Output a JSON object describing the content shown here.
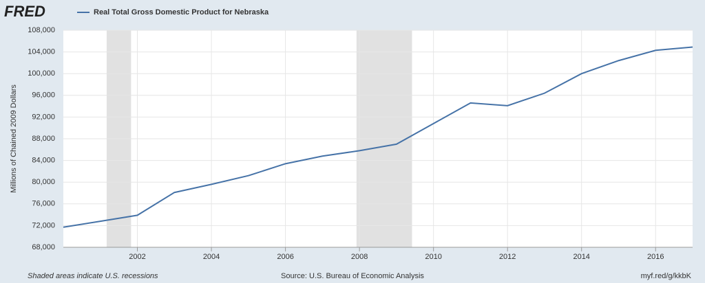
{
  "logo": "FRED",
  "chart_data": {
    "type": "line",
    "title": "Real Total Gross Domestic Product for Nebraska",
    "y_label": "Millions of Chained 2009 Dollars",
    "note": "Shaded areas indicate U.S. recessions",
    "source": "Source: U.S. Bureau of Economic Analysis",
    "link": "myf.red/g/kkbK",
    "x": [
      2000,
      2001,
      2002,
      2003,
      2004,
      2005,
      2006,
      2007,
      2008,
      2009,
      2010,
      2011,
      2012,
      2013,
      2014,
      2015,
      2016,
      2017
    ],
    "series": [
      {
        "name": "Real Total Gross Domestic Product for Nebraska",
        "color": "#4572a7",
        "values": [
          71700,
          72800,
          73900,
          78100,
          79600,
          81200,
          83400,
          84800,
          85800,
          87000,
          90800,
          94600,
          94100,
          96400,
          100000,
          102400,
          104300,
          104900
        ]
      }
    ],
    "recessions": [
      [
        2001.17,
        2001.83
      ],
      [
        2007.92,
        2009.42
      ]
    ],
    "xlim": [
      2000,
      2017
    ],
    "xticks": [
      2002,
      2004,
      2006,
      2008,
      2010,
      2012,
      2014,
      2016
    ],
    "ylim": [
      68000,
      108000
    ],
    "yticks": [
      {
        "value": 68000,
        "label": "68,000"
      },
      {
        "value": 72000,
        "label": "72,000"
      },
      {
        "value": 76000,
        "label": "76,000"
      },
      {
        "value": 80000,
        "label": "80,000"
      },
      {
        "value": 84000,
        "label": "84,000"
      },
      {
        "value": 88000,
        "label": "88,000"
      },
      {
        "value": 92000,
        "label": "92,000"
      },
      {
        "value": 96000,
        "label": "96,000"
      },
      {
        "value": 100000,
        "label": "100,000"
      },
      {
        "value": 104000,
        "label": "104,000"
      },
      {
        "value": 108000,
        "label": "108,000"
      }
    ],
    "grid": true
  }
}
